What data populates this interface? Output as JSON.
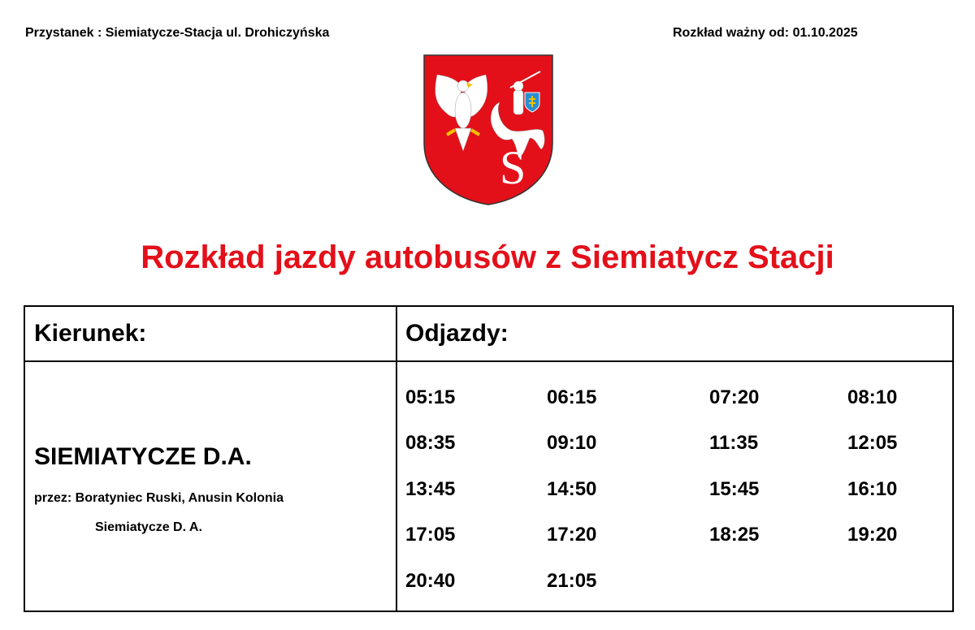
{
  "header": {
    "stop": "Przystanek : Siemiatycze-Stacja ul. Drohiczyńska",
    "valid_from": "Rozkład ważny od: 01.10.2025"
  },
  "crest": {
    "name": "coat-of-arms-siemiatycze",
    "colors": {
      "field": "#e3101a",
      "charge": "#ffffff",
      "gold": "#f2c200",
      "shield": "#2a8fd0"
    }
  },
  "title": "Rozkład jazdy autobusów z Siemiatycz Stacji",
  "table": {
    "direction_header": "Kierunek:",
    "departures_header": "Odjazdy:",
    "destination": "SIEMIATYCZE D.A.",
    "via": "przez: Boratyniec Ruski, Anusin Kolonia",
    "via_line2": "Siemiatycze D. A.",
    "departures": [
      [
        "05:15",
        "06:15",
        "07:20",
        "08:10"
      ],
      [
        "08:35",
        "09:10",
        "11:35",
        "12:05"
      ],
      [
        "13:45",
        "14:50",
        "15:45",
        "16:10"
      ],
      [
        "17:05",
        "17:20",
        "18:25",
        "19:20"
      ],
      [
        "20:40",
        "21:05"
      ]
    ]
  }
}
